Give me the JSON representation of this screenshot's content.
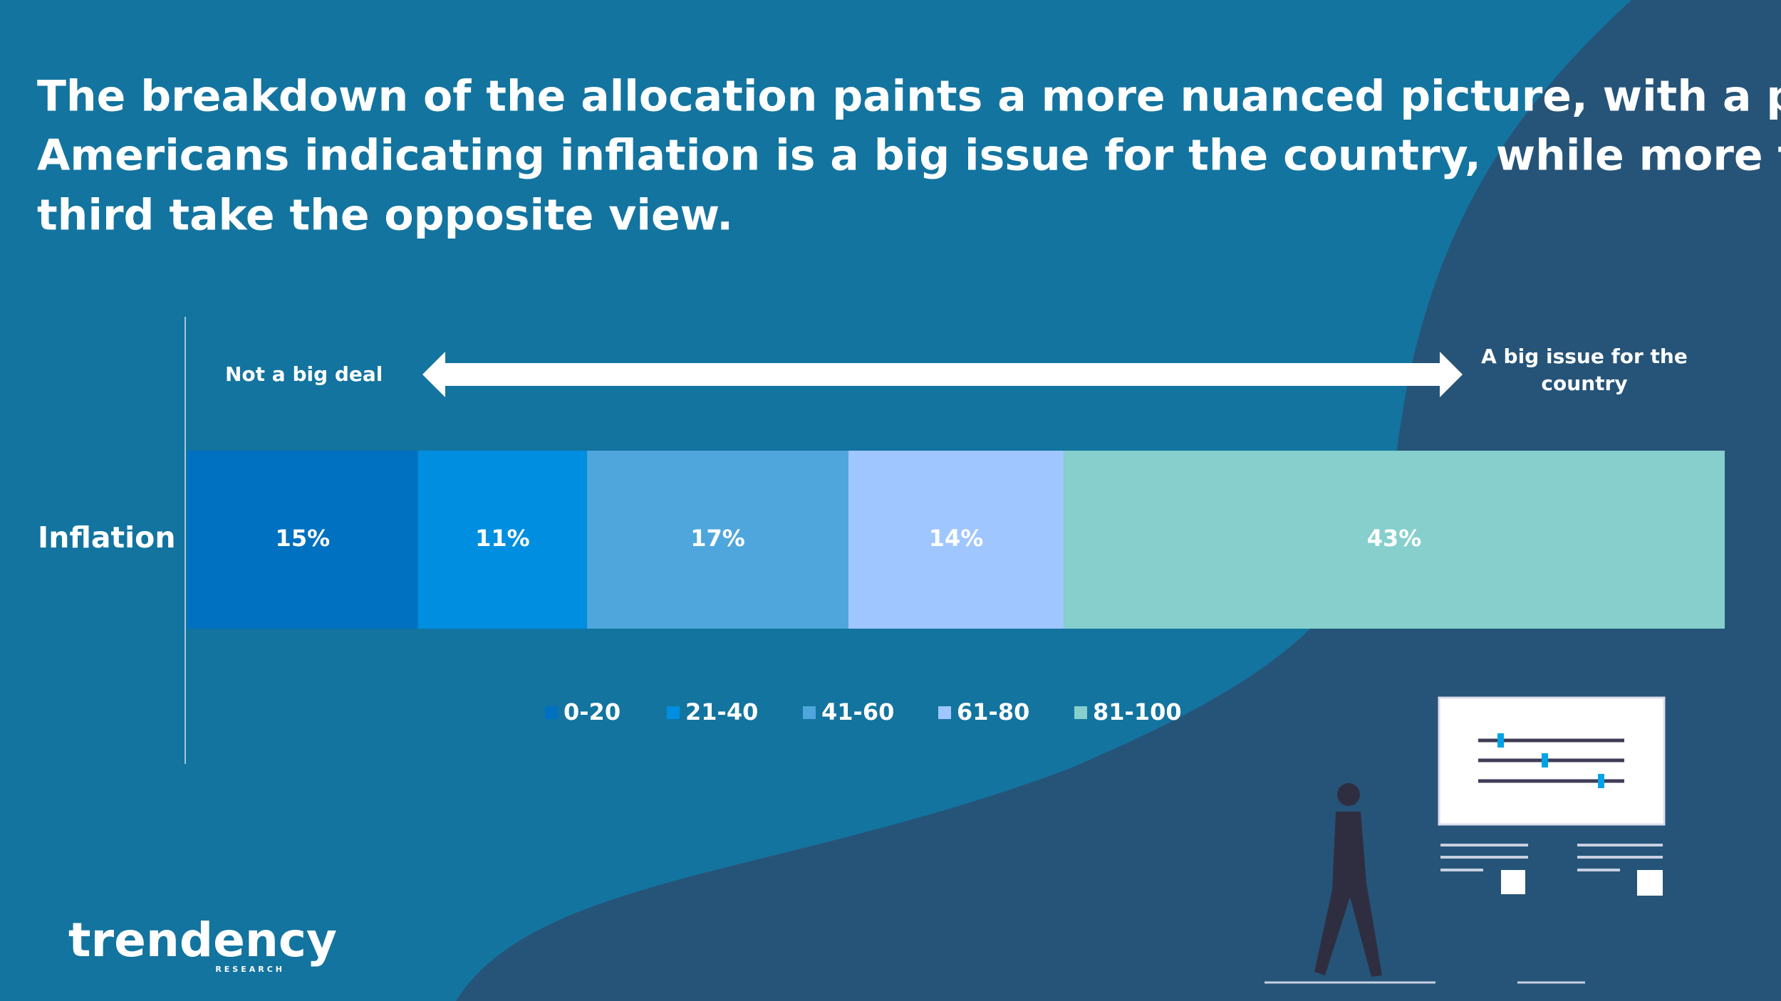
{
  "chart_data": {
    "type": "stacked-bar",
    "title": [
      "The breakdown of the allocation paints a more nuanced picture, with a plurality of",
      "Americans indicating inflation is a big issue for the country, while more than a",
      "third take the opposite view."
    ],
    "annotations": [
      "Not a big deal",
      "A big issue for the",
      "country"
    ],
    "categories": [
      "Inflation"
    ],
    "series": [
      {
        "name": "0-20",
        "color": "#0070c0",
        "values": [
          15
        ],
        "value_labels": [
          "15%"
        ]
      },
      {
        "name": "21-40",
        "color": "#008ee0",
        "values": [
          11
        ],
        "value_labels": [
          "11%"
        ]
      },
      {
        "name": "41-60",
        "color": "#4fa6dc",
        "values": [
          17
        ],
        "value_labels": [
          "17%"
        ]
      },
      {
        "name": "61-80",
        "color": "#a0c6ff",
        "values": [
          14
        ],
        "value_labels": [
          "14%"
        ]
      },
      {
        "name": "81-100",
        "color": "#86cfcc",
        "values": [
          43
        ],
        "value_labels": [
          "43%"
        ]
      }
    ],
    "legend": "bottom"
  },
  "logo": {
    "name": "trendency",
    "tagline": "RESEARCH"
  }
}
